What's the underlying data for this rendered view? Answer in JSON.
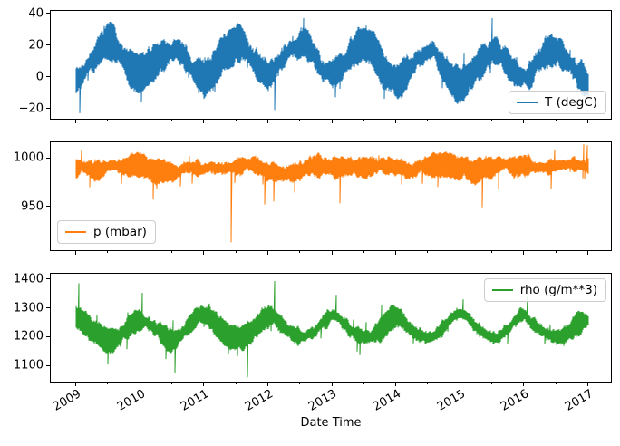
{
  "figure": {
    "background": "#ffffff"
  },
  "xaxis": {
    "label": "Date Time",
    "start": 2009,
    "end": 2017,
    "tick_labels": [
      "2009",
      "2010",
      "2011",
      "2012",
      "2013",
      "2014",
      "2015",
      "2016",
      "2017"
    ],
    "tick_values": [
      2009,
      2010,
      2011,
      2012,
      2013,
      2014,
      2015,
      2016,
      2017
    ],
    "minor_tick_values": [
      2009.5,
      2010.5,
      2011.5,
      2012.5,
      2013.5,
      2014.5,
      2015.5,
      2016.5
    ]
  },
  "chart_data": [
    {
      "type": "line",
      "label": "T (degC)",
      "color": "#1f77b4",
      "legend_loc": "lower right",
      "ylim": [
        -26.5,
        41.5
      ],
      "yticks": [
        {
          "v": 40,
          "label": "40"
        },
        {
          "v": 20,
          "label": "20"
        },
        {
          "v": 0,
          "label": "0"
        },
        {
          "v": -20,
          "label": "−20"
        }
      ],
      "monthly_mean": [
        -1.5,
        0.0,
        4.5,
        9.0,
        13.5,
        16.5,
        18.5,
        18.0,
        13.5,
        8.5,
        3.5,
        0.0
      ],
      "band": 9.5,
      "drift": 4,
      "spike_prob": 0.035,
      "spike_scale": 7,
      "spike_down_bias": 0.5,
      "seed": 7,
      "events": [
        {
          "x": 2009.05,
          "v": -23
        },
        {
          "x": 2010.02,
          "v": -16
        },
        {
          "x": 2011.0,
          "v": -14
        },
        {
          "x": 2012.1,
          "v": -21
        },
        {
          "x": 2013.05,
          "v": -13
        },
        {
          "x": 2012.55,
          "v": 37
        },
        {
          "x": 2015.5,
          "v": 37
        },
        {
          "x": 2016.98,
          "v": -11
        }
      ]
    },
    {
      "type": "line",
      "label": "p (mbar)",
      "color": "#ff7f0e",
      "legend_loc": "lower left",
      "ylim": [
        905,
        1016
      ],
      "yticks": [
        {
          "v": 1000,
          "label": "1000"
        },
        {
          "v": 950,
          "label": "950"
        }
      ],
      "monthly_mean": [
        989,
        989,
        988,
        987,
        988,
        988,
        988,
        989,
        990,
        990,
        989,
        989
      ],
      "band": 10,
      "drift": 4,
      "spike_prob": 0.06,
      "spike_scale": 16,
      "spike_down_bias": 0.85,
      "seed": 21,
      "events": [
        {
          "x": 2011.42,
          "v": 913
        },
        {
          "x": 2011.95,
          "v": 952
        },
        {
          "x": 2012.08,
          "v": 955
        },
        {
          "x": 2010.2,
          "v": 957
        },
        {
          "x": 2013.12,
          "v": 953
        },
        {
          "x": 2015.35,
          "v": 949
        },
        {
          "x": 2016.93,
          "v": 1014
        },
        {
          "x": 2016.99,
          "v": 1013
        },
        {
          "x": 2009.08,
          "v": 1008
        }
      ]
    },
    {
      "type": "line",
      "label": "rho (g/m**3)",
      "color": "#2ca02c",
      "legend_loc": "upper right",
      "ylim": [
        1044,
        1418
      ],
      "yticks": [
        {
          "v": 1400,
          "label": "1400"
        },
        {
          "v": 1300,
          "label": "1300"
        },
        {
          "v": 1200,
          "label": "1200"
        },
        {
          "v": 1100,
          "label": "1100"
        }
      ],
      "monthly_mean": [
        1268,
        1262,
        1243,
        1222,
        1205,
        1193,
        1187,
        1190,
        1205,
        1224,
        1246,
        1263
      ],
      "band": 34,
      "drift": 13,
      "spike_prob": 0.045,
      "spike_scale": 38,
      "spike_down_bias": 0.45,
      "seed": 33,
      "events": [
        {
          "x": 2009.04,
          "v": 1385
        },
        {
          "x": 2012.1,
          "v": 1393
        },
        {
          "x": 2010.03,
          "v": 1352
        },
        {
          "x": 2011.68,
          "v": 1059
        },
        {
          "x": 2010.55,
          "v": 1075
        },
        {
          "x": 2016.05,
          "v": 1340
        },
        {
          "x": 2013.07,
          "v": 1345
        }
      ]
    }
  ]
}
